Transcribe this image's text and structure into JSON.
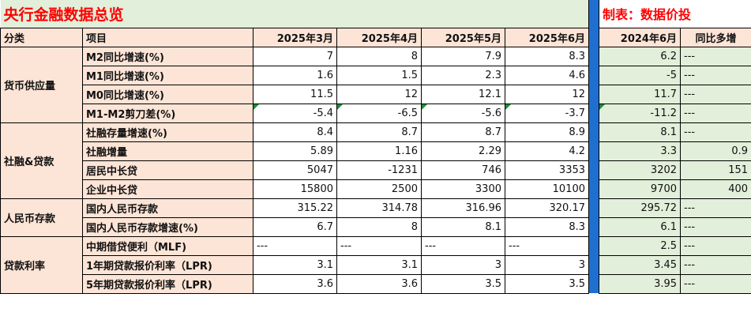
{
  "title": "央行金融数据总览",
  "maker": "制表：数据价投",
  "headers": {
    "category": "分类",
    "item": "项目",
    "mar": "2025年3月",
    "apr": "2025年4月",
    "may": "2025年5月",
    "jun": "2025年6月",
    "jun24": "2024年6月",
    "yoy": "同比多增"
  },
  "groups": [
    {
      "name": "货币供应量",
      "rows": [
        {
          "item": "M2同比增速(%)",
          "mar": "7",
          "apr": "8",
          "may": "7.9",
          "jun": "8.3",
          "jun24": "6.2",
          "yoy": "---"
        },
        {
          "item": "M1同比增速(%)",
          "mar": "1.6",
          "apr": "1.5",
          "may": "2.3",
          "jun": "4.6",
          "jun24": "-5",
          "yoy": "---"
        },
        {
          "item": "M0同比增速(%)",
          "mar": "11.5",
          "apr": "12",
          "may": "12.1",
          "jun": "12",
          "jun24": "11.7",
          "yoy": "---"
        },
        {
          "item": "M1-M2剪刀差(%)",
          "mar": "-5.4",
          "apr": "-6.5",
          "may": "-5.6",
          "jun": "-3.7",
          "jun24": "-11.2",
          "yoy": "---"
        }
      ]
    },
    {
      "name": "社融&贷款",
      "rows": [
        {
          "item": "社融存量增速(%)",
          "mar": "8.4",
          "apr": "8.7",
          "may": "8.7",
          "jun": "8.9",
          "jun24": "8.1",
          "yoy": "---"
        },
        {
          "item": "社融增量",
          "mar": "5.89",
          "apr": "1.16",
          "may": "2.29",
          "jun": "4.2",
          "jun24": "3.3",
          "yoy": "0.9"
        },
        {
          "item": "居民中长贷",
          "mar": "5047",
          "apr": "-1231",
          "may": "746",
          "jun": "3353",
          "jun24": "3202",
          "yoy": "151"
        },
        {
          "item": "企业中长贷",
          "mar": "15800",
          "apr": "2500",
          "may": "3300",
          "jun": "10100",
          "jun24": "9700",
          "yoy": "400"
        }
      ]
    },
    {
      "name": "人民币存款",
      "rows": [
        {
          "item": "国内人民币存款",
          "mar": "315.22",
          "apr": "314.78",
          "may": "316.96",
          "jun": "320.17",
          "jun24": "295.72",
          "yoy": "---"
        },
        {
          "item": "国内人民币存款增速(%)",
          "mar": "6.7",
          "apr": "8",
          "may": "8.1",
          "jun": "8.3",
          "jun24": "6.1",
          "yoy": "---"
        }
      ]
    },
    {
      "name": "贷款利率",
      "rows": [
        {
          "item": "中期借贷便利（MLF)",
          "mar": "---",
          "apr": "---",
          "may": "---",
          "jun": "---",
          "jun24": "2.5",
          "yoy": "---"
        },
        {
          "item": "1年期贷款报价利率（LPR)",
          "mar": "3.1",
          "apr": "3.1",
          "may": "3",
          "jun": "3",
          "jun24": "3.45",
          "yoy": "---"
        },
        {
          "item": "5年期贷款报价利率（LPR)",
          "mar": "3.6",
          "apr": "3.6",
          "may": "3.5",
          "jun": "3.5",
          "jun24": "3.95",
          "yoy": "---"
        }
      ]
    }
  ]
}
